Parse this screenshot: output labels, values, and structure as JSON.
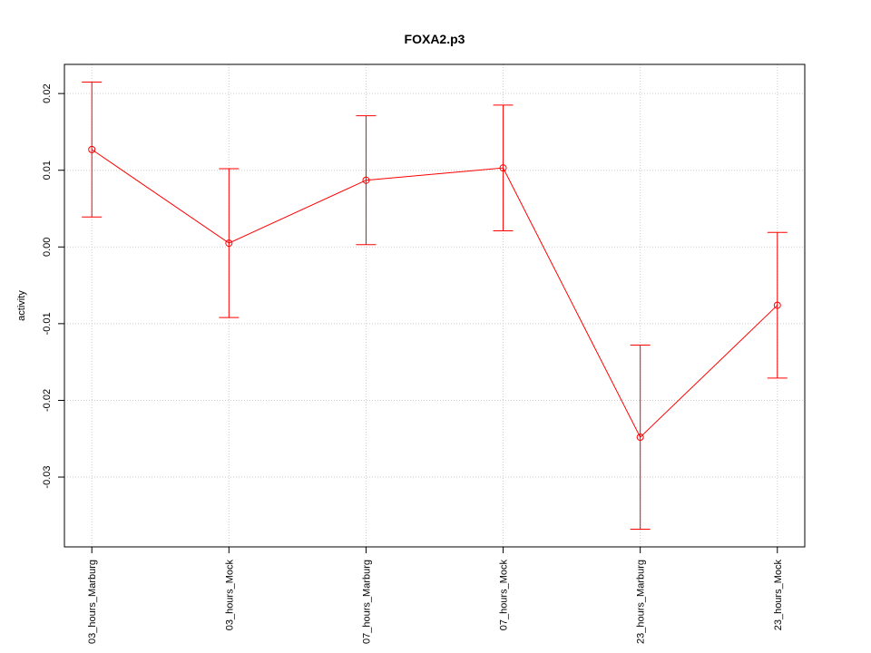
{
  "chart_data": {
    "type": "line",
    "title": "FOXA2.p3",
    "y_label": "activity",
    "categories": [
      "03_hours_Marburg",
      "03_hours_Mock",
      "07_hours_Marburg",
      "07_hours_Mock",
      "23_hours_Marburg",
      "23_hours_Mock"
    ],
    "series": [
      {
        "color": "#ff0000",
        "values": [
          0.0127,
          0.0005,
          0.0087,
          0.0103,
          -0.0248,
          -0.0076
        ],
        "errors": [
          0.0088,
          0.0097,
          0.0084,
          0.0082,
          0.012,
          0.0095
        ]
      }
    ],
    "ylim": [
      -0.0391,
      0.0238
    ],
    "yticks": [
      -0.03,
      -0.02,
      -0.01,
      {
        "value": 0,
        "label": "0.00"
      },
      0.01,
      0.02
    ],
    "grid": true
  }
}
